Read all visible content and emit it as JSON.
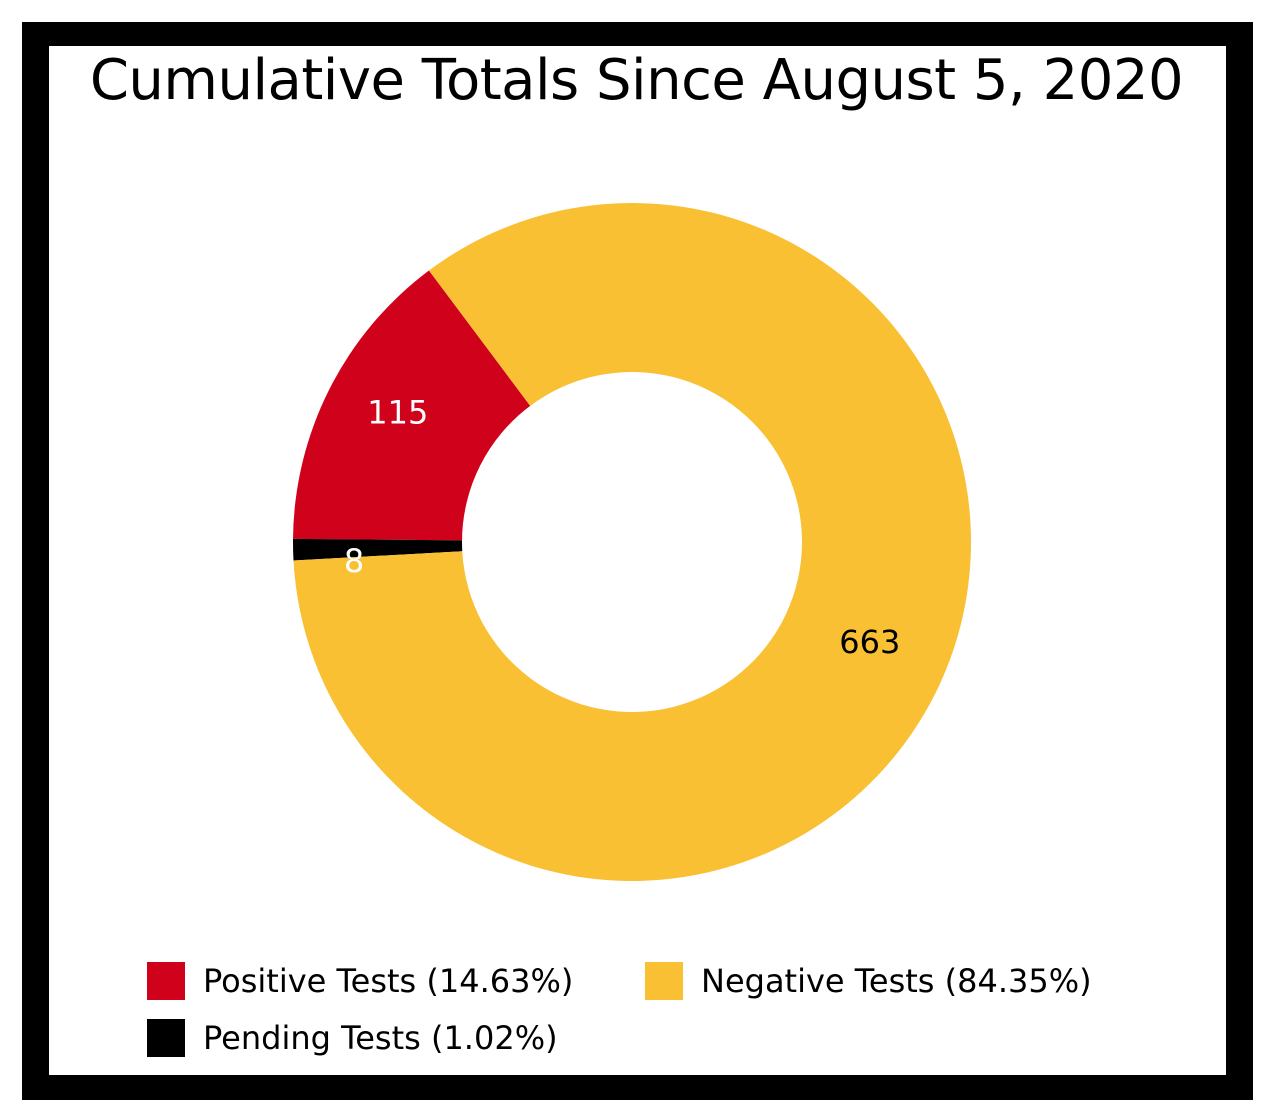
{
  "colors": {
    "positive": "#d0021b",
    "negative": "#f8c032",
    "pending": "#000000",
    "frame": "#000000",
    "background": "#ffffff"
  },
  "chart_data": {
    "type": "pie",
    "variant": "donut",
    "title": "Cumulative Totals Since August 5, 2020",
    "slices": [
      {
        "label": "Positive Tests (14.63%)",
        "value": 115,
        "data_label": "115",
        "color": "#d0021b",
        "label_color": "#ffffff"
      },
      {
        "label": "Pending Tests (1.02%)",
        "value": 8,
        "data_label": "8",
        "color": "#000000",
        "label_color": "#ffffff"
      },
      {
        "label": "Negative Tests (84.35%)",
        "value": 663,
        "data_label": "663",
        "color": "#f8c032",
        "label_color": "#000000"
      }
    ],
    "legend_position": "bottom"
  }
}
